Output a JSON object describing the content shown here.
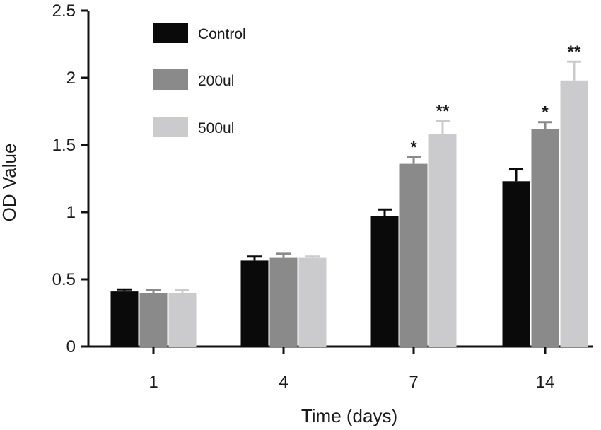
{
  "chart_data": {
    "type": "bar",
    "title": "",
    "xlabel": "Time (days)",
    "ylabel": "OD Value",
    "ylim": [
      0,
      2.5
    ],
    "yticks": [
      0,
      0.5,
      1,
      1.5,
      2,
      2.5
    ],
    "ytick_labels": [
      "0",
      "0.5",
      "1",
      "1.5",
      "2",
      "2.5"
    ],
    "categories": [
      "1",
      "4",
      "7",
      "14"
    ],
    "series": [
      {
        "name": "Control",
        "color": "#0a0a0a",
        "values": [
          0.41,
          0.64,
          0.97,
          1.23
        ],
        "errors": [
          0.015,
          0.03,
          0.05,
          0.09
        ],
        "significance": [
          "",
          "",
          "",
          ""
        ]
      },
      {
        "name": "200ul",
        "color": "#8a8a8a",
        "values": [
          0.4,
          0.66,
          1.36,
          1.62
        ],
        "errors": [
          0.02,
          0.03,
          0.05,
          0.05
        ],
        "significance": [
          "",
          "",
          "*",
          "*"
        ]
      },
      {
        "name": "500ul",
        "color": "#cbcbcd",
        "values": [
          0.4,
          0.66,
          1.58,
          1.98
        ],
        "errors": [
          0.02,
          0.01,
          0.1,
          0.14
        ],
        "significance": [
          "",
          "",
          "**",
          "**"
        ]
      }
    ],
    "legend_position": "top-left",
    "grid": false
  }
}
